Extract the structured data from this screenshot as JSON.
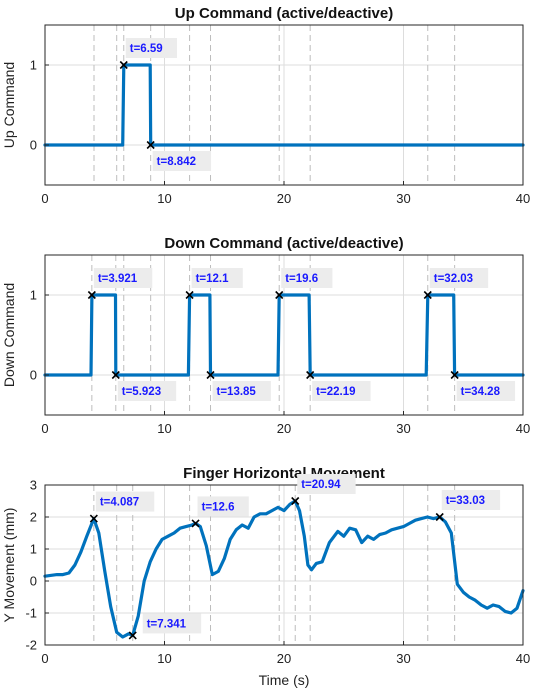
{
  "colors": {
    "line": "#0072BD",
    "annotation_text": "#1a1aff",
    "annotation_bg": "#ececec",
    "grid": "#dddddd",
    "vline": "#bdbdbd"
  },
  "chart_data": [
    {
      "type": "line",
      "title": "Up Command (active/deactive)",
      "xlabel": "",
      "ylabel": "Up Command",
      "xlim": [
        0,
        40
      ],
      "ylim": [
        -0.5,
        1.5
      ],
      "xticks": [
        0,
        10,
        20,
        30,
        40
      ],
      "yticks": [
        0,
        1
      ],
      "grid": true,
      "series": [
        {
          "x": [
            0,
            6.5,
            6.59,
            8.8,
            8.842,
            40
          ],
          "y": [
            0,
            0,
            1,
            1,
            0,
            0
          ]
        }
      ],
      "markers": [
        {
          "x": 6.59,
          "y": 1
        },
        {
          "x": 8.842,
          "y": 0
        }
      ],
      "annotations": [
        {
          "text": "t=6.59",
          "x": 6.59,
          "y": 1,
          "position": "above"
        },
        {
          "text": "t=8.842",
          "x": 8.842,
          "y": 0,
          "position": "below"
        }
      ],
      "vlines": [
        4.1,
        6.0,
        6.59,
        8.842,
        12.1,
        13.85,
        19.6,
        22.19,
        32.03,
        34.28
      ]
    },
    {
      "type": "line",
      "title": "Down Command (active/deactive)",
      "xlabel": "",
      "ylabel": "Down Command",
      "xlim": [
        0,
        40
      ],
      "ylim": [
        -0.5,
        1.5
      ],
      "xticks": [
        0,
        10,
        20,
        30,
        40
      ],
      "yticks": [
        0,
        1
      ],
      "grid": true,
      "series": [
        {
          "x": [
            0,
            3.85,
            3.921,
            5.9,
            5.923,
            12.0,
            12.1,
            13.8,
            13.85,
            19.5,
            19.6,
            22.1,
            22.19,
            31.9,
            32.03,
            34.2,
            34.28,
            40
          ],
          "y": [
            0,
            0,
            1,
            1,
            0,
            0,
            1,
            1,
            0,
            0,
            1,
            1,
            0,
            0,
            1,
            1,
            0,
            0
          ]
        }
      ],
      "markers": [
        {
          "x": 3.921,
          "y": 1
        },
        {
          "x": 5.923,
          "y": 0
        },
        {
          "x": 12.1,
          "y": 1
        },
        {
          "x": 13.85,
          "y": 0
        },
        {
          "x": 19.6,
          "y": 1
        },
        {
          "x": 22.19,
          "y": 0
        },
        {
          "x": 32.03,
          "y": 1
        },
        {
          "x": 34.28,
          "y": 0
        }
      ],
      "annotations": [
        {
          "text": "t=3.921",
          "x": 3.921,
          "y": 1,
          "position": "above"
        },
        {
          "text": "t=5.923",
          "x": 5.923,
          "y": 0,
          "position": "below"
        },
        {
          "text": "t=12.1",
          "x": 12.1,
          "y": 1,
          "position": "above"
        },
        {
          "text": "t=13.85",
          "x": 13.85,
          "y": 0,
          "position": "below"
        },
        {
          "text": "t=19.6",
          "x": 19.6,
          "y": 1,
          "position": "above"
        },
        {
          "text": "t=22.19",
          "x": 22.19,
          "y": 0,
          "position": "below"
        },
        {
          "text": "t=32.03",
          "x": 32.03,
          "y": 1,
          "position": "above"
        },
        {
          "text": "t=34.28",
          "x": 34.28,
          "y": 0,
          "position": "below"
        }
      ],
      "vlines": [
        3.921,
        5.923,
        6.59,
        8.842,
        12.1,
        13.85,
        19.6,
        22.19,
        32.03,
        34.28
      ]
    },
    {
      "type": "line",
      "title": "Finger Horizontal Movement",
      "xlabel": "Time (s)",
      "ylabel": "Y Movement (mm)",
      "xlim": [
        0,
        40
      ],
      "ylim": [
        -2,
        3
      ],
      "xticks": [
        0,
        10,
        20,
        30,
        40
      ],
      "yticks": [
        -2,
        -1,
        0,
        1,
        2,
        3
      ],
      "grid": true,
      "series": [
        {
          "x": [
            0,
            1,
            1.5,
            2,
            2.5,
            3,
            3.5,
            4.087,
            4.5,
            5,
            5.5,
            6,
            6.5,
            7,
            7.341,
            7.8,
            8.3,
            8.8,
            9.3,
            9.8,
            10.3,
            10.8,
            11.3,
            11.8,
            12.3,
            12.6,
            13,
            13.5,
            14,
            14.5,
            15,
            15.5,
            16,
            16.5,
            17,
            17.5,
            18,
            18.5,
            19,
            19.5,
            20,
            20.5,
            20.94,
            21.3,
            21.7,
            22,
            22.3,
            22.7,
            23.2,
            23.8,
            24.5,
            25,
            25.5,
            26,
            26.5,
            27,
            27.5,
            28,
            28.5,
            29,
            29.5,
            30,
            30.5,
            31,
            31.5,
            32,
            32.5,
            33.03,
            33.5,
            34,
            34.5,
            35,
            35.5,
            36,
            36.5,
            37,
            37.5,
            38,
            38.5,
            39,
            39.5,
            40
          ],
          "y": [
            0.15,
            0.2,
            0.2,
            0.25,
            0.5,
            0.9,
            1.4,
            1.95,
            1.5,
            0.3,
            -0.8,
            -1.6,
            -1.75,
            -1.65,
            -1.7,
            -1.1,
            0.0,
            0.6,
            1.0,
            1.3,
            1.4,
            1.5,
            1.65,
            1.7,
            1.75,
            1.8,
            1.7,
            1.1,
            0.2,
            0.3,
            0.7,
            1.3,
            1.6,
            1.75,
            1.65,
            2.0,
            2.1,
            2.1,
            2.2,
            2.3,
            2.2,
            2.4,
            2.5,
            2.2,
            1.4,
            0.5,
            0.35,
            0.55,
            0.6,
            1.2,
            1.55,
            1.4,
            1.65,
            1.6,
            1.2,
            1.4,
            1.3,
            1.45,
            1.5,
            1.6,
            1.65,
            1.7,
            1.8,
            1.9,
            1.95,
            2.0,
            1.95,
            2.0,
            1.85,
            1.5,
            -0.1,
            -0.35,
            -0.5,
            -0.6,
            -0.75,
            -0.85,
            -0.75,
            -0.8,
            -0.95,
            -1.0,
            -0.85,
            -0.3
          ]
        }
      ],
      "markers": [
        {
          "x": 4.087,
          "y": 1.95
        },
        {
          "x": 7.341,
          "y": -1.7
        },
        {
          "x": 12.6,
          "y": 1.8
        },
        {
          "x": 20.94,
          "y": 2.5
        },
        {
          "x": 33.03,
          "y": 2.0
        }
      ],
      "annotations": [
        {
          "text": "t=4.087",
          "x": 4.087,
          "y": 1.95,
          "position": "above"
        },
        {
          "text": "t=7.341",
          "x": 7.341,
          "y": -1.7,
          "position": "above-right"
        },
        {
          "text": "t=12.6",
          "x": 12.6,
          "y": 1.8,
          "position": "above"
        },
        {
          "text": "t=20.94",
          "x": 20.94,
          "y": 2.5,
          "position": "above"
        },
        {
          "text": "t=33.03",
          "x": 33.03,
          "y": 2.0,
          "position": "above"
        }
      ],
      "vlines": [
        4.087,
        6.0,
        7.341,
        12.1,
        13.85,
        19.6,
        20.94,
        22.19,
        32.03,
        34.28
      ]
    }
  ]
}
